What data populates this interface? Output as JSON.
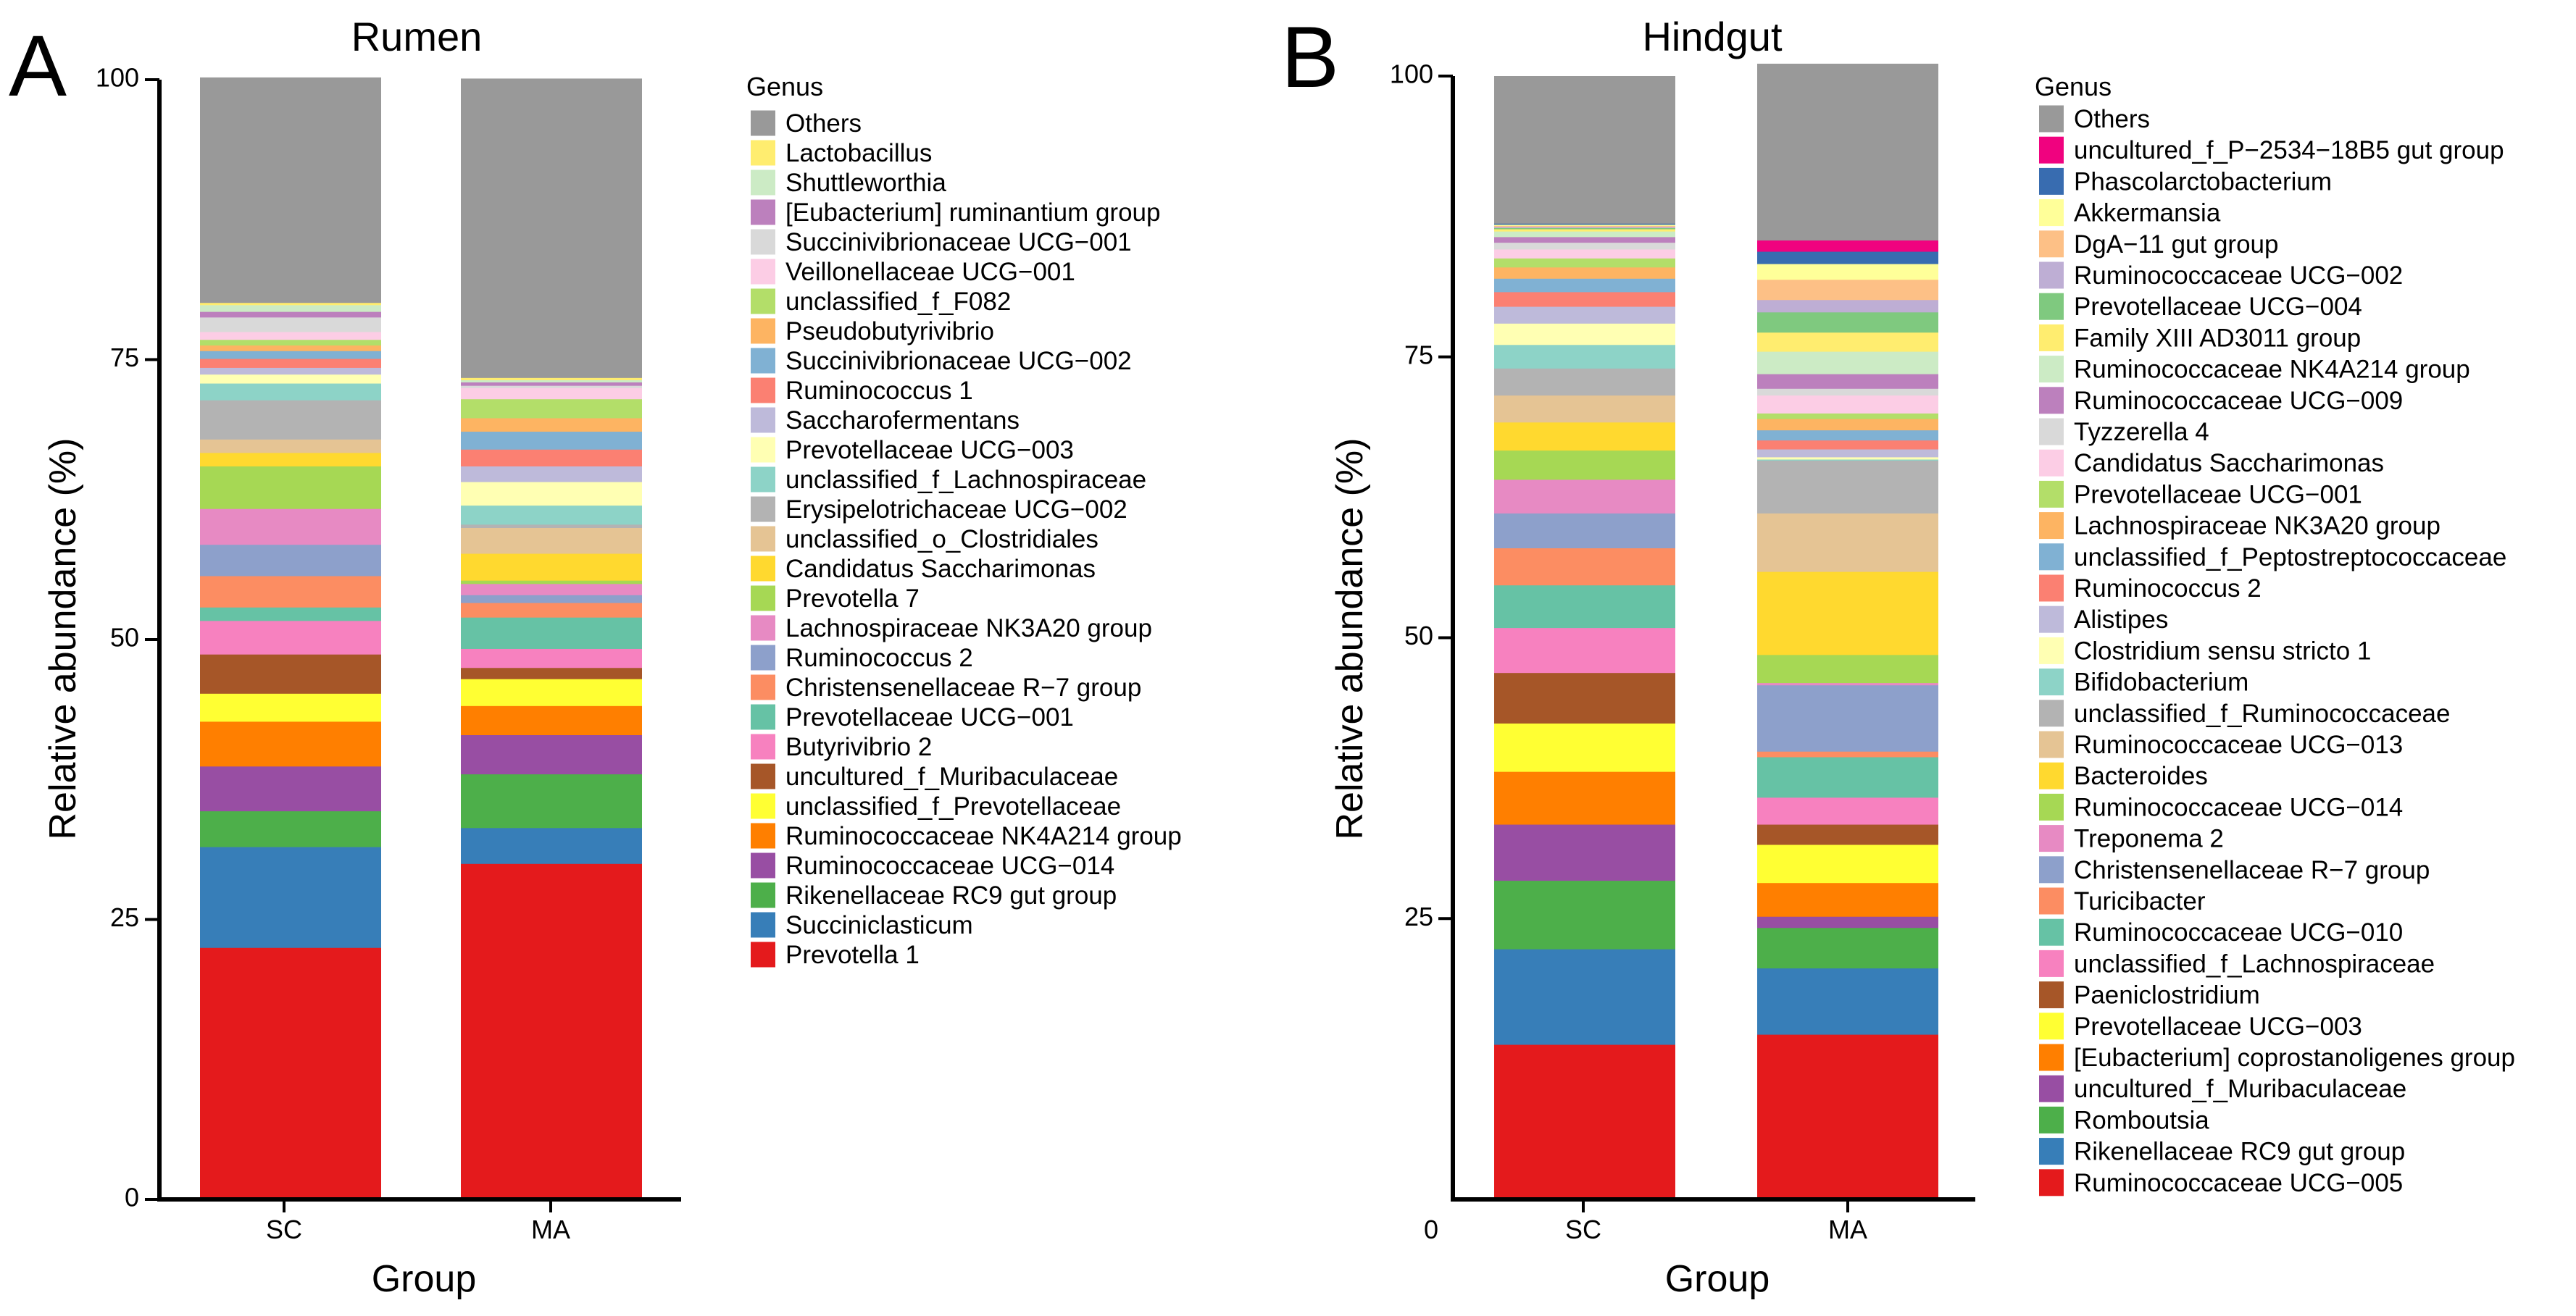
{
  "chart_data": [
    {
      "type": "bar",
      "stacked": true,
      "panel_letter": "A",
      "title": "Rumen",
      "xlabel": "Group",
      "ylabel": "Relative abundance (%)",
      "ylim": [
        0,
        100
      ],
      "yticks": [
        "0",
        "25",
        "50",
        "75",
        "100"
      ],
      "categories": [
        "SC",
        "MA"
      ],
      "legend_title": "Genus",
      "legend_position": "right",
      "series": [
        {
          "name": "Prevotella 1",
          "color": "#E41A1C",
          "values": [
            22.5,
            30.0
          ]
        },
        {
          "name": "Succiniclasticum",
          "color": "#377EB8",
          "values": [
            9.0,
            3.2
          ]
        },
        {
          "name": "Rikenellaceae RC9 gut group",
          "color": "#4DAF4A",
          "values": [
            3.2,
            4.8
          ]
        },
        {
          "name": "Ruminococcaceae UCG−014",
          "color": "#984EA3",
          "values": [
            4.0,
            3.5
          ]
        },
        {
          "name": "Ruminococcaceae NK4A214 group",
          "color": "#FF7F00",
          "values": [
            4.0,
            2.6
          ]
        },
        {
          "name": "unclassified_f_Prevotellaceae",
          "color": "#FFFF33",
          "values": [
            2.5,
            2.4
          ]
        },
        {
          "name": "uncultured_f_Muribaculaceae",
          "color": "#A65628",
          "values": [
            3.5,
            1.0
          ]
        },
        {
          "name": "Butyrivibrio 2",
          "color": "#F781BF",
          "values": [
            3.0,
            1.7
          ]
        },
        {
          "name": "Prevotellaceae UCG−001",
          "color": "#66C2A5",
          "values": [
            1.2,
            2.8
          ]
        },
        {
          "name": "Christensenellaceae R−7 group",
          "color": "#FC8D62",
          "values": [
            2.8,
            1.3
          ]
        },
        {
          "name": "Ruminococcus 2",
          "color": "#8DA0CB",
          "values": [
            2.8,
            0.7
          ]
        },
        {
          "name": "Lachnospiraceae NK3A20 group",
          "color": "#E78AC3",
          "values": [
            3.2,
            1.0
          ]
        },
        {
          "name": "Prevotella 7",
          "color": "#A6D854",
          "values": [
            3.8,
            0.3
          ]
        },
        {
          "name": "Candidatus Saccharimonas",
          "color": "#FFD92F",
          "values": [
            1.2,
            2.4
          ]
        },
        {
          "name": "unclassified_o_Clostridiales",
          "color": "#E5C494",
          "values": [
            1.2,
            2.3
          ]
        },
        {
          "name": "Erysipelotrichaceae UCG−002",
          "color": "#B3B3B3",
          "values": [
            3.5,
            0.3
          ]
        },
        {
          "name": "unclassified_f_Lachnospiraceae",
          "color": "#8DD3C7",
          "values": [
            1.5,
            1.7
          ]
        },
        {
          "name": "Prevotellaceae UCG−003",
          "color": "#FFFFB3",
          "values": [
            0.8,
            2.1
          ]
        },
        {
          "name": "Saccharofermentans",
          "color": "#BEBADA",
          "values": [
            0.6,
            1.4
          ]
        },
        {
          "name": "Ruminococcus 1",
          "color": "#FB8072",
          "values": [
            0.8,
            1.5
          ]
        },
        {
          "name": "Succinivibrionaceae UCG−002",
          "color": "#80B1D3",
          "values": [
            0.7,
            1.6
          ]
        },
        {
          "name": "Pseudobutyrivibrio",
          "color": "#FDB462",
          "values": [
            0.5,
            1.2
          ]
        },
        {
          "name": "unclassified_f_F082",
          "color": "#B3DE69",
          "values": [
            0.5,
            1.7
          ]
        },
        {
          "name": "Veillonellaceae UCG−001",
          "color": "#FCCDE5",
          "values": [
            0.7,
            1.0
          ]
        },
        {
          "name": "Succinivibrionaceae UCG−001",
          "color": "#D9D9D9",
          "values": [
            1.3,
            0.2
          ]
        },
        {
          "name": "[Eubacterium] ruminantium group",
          "color": "#BC80BD",
          "values": [
            0.5,
            0.3
          ]
        },
        {
          "name": "Shuttleworthia",
          "color": "#CCEBC5",
          "values": [
            0.6,
            0.2
          ]
        },
        {
          "name": "Lactobacillus",
          "color": "#FFED6F",
          "values": [
            0.2,
            0.2
          ]
        },
        {
          "name": "Others",
          "color": "#999999",
          "values": [
            20.1,
            26.7
          ]
        }
      ]
    },
    {
      "type": "bar",
      "stacked": true,
      "panel_letter": "B",
      "title": "Hindgut",
      "xlabel": "Group",
      "ylabel": "Relative abundance (%)",
      "ylim": [
        0,
        100
      ],
      "yticks": [
        "0",
        "25",
        "50",
        "75",
        "100"
      ],
      "categories": [
        "SC",
        "MA"
      ],
      "legend_title": "Genus",
      "legend_position": "right",
      "series": [
        {
          "name": "Ruminococcaceae UCG−005",
          "color": "#E41A1C",
          "values": [
            13.8,
            14.7
          ]
        },
        {
          "name": "Rikenellaceae RC9 gut group",
          "color": "#377EB8",
          "values": [
            8.5,
            5.9
          ]
        },
        {
          "name": "Romboutsia",
          "color": "#4DAF4A",
          "values": [
            6.1,
            3.6
          ]
        },
        {
          "name": "uncultured_f_Muribaculaceae",
          "color": "#984EA3",
          "values": [
            5.0,
            1.0
          ]
        },
        {
          "name": "[Eubacterium] coprostanoligenes group",
          "color": "#FF7F00",
          "values": [
            4.7,
            3.0
          ]
        },
        {
          "name": "Prevotellaceae UCG−003",
          "color": "#FFFF33",
          "values": [
            4.3,
            3.4
          ]
        },
        {
          "name": "Paeniclostridium",
          "color": "#A65628",
          "values": [
            4.5,
            1.8
          ]
        },
        {
          "name": "unclassified_f_Lachnospiraceae",
          "color": "#F781BF",
          "values": [
            4.0,
            2.4
          ]
        },
        {
          "name": "Ruminococcaceae UCG−010",
          "color": "#66C2A5",
          "values": [
            3.8,
            3.6
          ]
        },
        {
          "name": "Turicibacter",
          "color": "#FC8D62",
          "values": [
            3.3,
            0.5
          ]
        },
        {
          "name": "Christensenellaceae R−7 group",
          "color": "#8DA0CB",
          "values": [
            3.1,
            5.9
          ]
        },
        {
          "name": "Treponema 2",
          "color": "#E78AC3",
          "values": [
            3.0,
            0.2
          ]
        },
        {
          "name": "Ruminococcaceae UCG−014",
          "color": "#A6D854",
          "values": [
            2.6,
            2.5
          ]
        },
        {
          "name": "Bacteroides",
          "color": "#FFD92F",
          "values": [
            2.5,
            7.4
          ]
        },
        {
          "name": "Ruminococcaceae UCG−013",
          "color": "#E5C494",
          "values": [
            2.4,
            5.2
          ]
        },
        {
          "name": "unclassified_f_Ruminococcaceae",
          "color": "#B3B3B3",
          "values": [
            2.4,
            4.7
          ]
        },
        {
          "name": "Bifidobacterium",
          "color": "#8DD3C7",
          "values": [
            2.1,
            0.1
          ]
        },
        {
          "name": "Clostridium sensu stricto 1",
          "color": "#FFFFB3",
          "values": [
            1.9,
            0.2
          ]
        },
        {
          "name": "Alistipes",
          "color": "#BEBADA",
          "values": [
            1.5,
            0.7
          ]
        },
        {
          "name": "Ruminococcus 2",
          "color": "#FB8072",
          "values": [
            1.3,
            0.8
          ]
        },
        {
          "name": "unclassified_f_Peptostreptococcaceae",
          "color": "#80B1D3",
          "values": [
            1.2,
            0.9
          ]
        },
        {
          "name": "Lachnospiraceae NK3A20 group",
          "color": "#FDB462",
          "values": [
            1.0,
            1.0
          ]
        },
        {
          "name": "Prevotellaceae UCG−001",
          "color": "#B3DE69",
          "values": [
            0.8,
            0.5
          ]
        },
        {
          "name": "Candidatus Saccharimonas",
          "color": "#FCCDE5",
          "values": [
            0.8,
            1.6
          ]
        },
        {
          "name": "Tyzzerella 4",
          "color": "#D9D9D9",
          "values": [
            0.6,
            0.6
          ]
        },
        {
          "name": "Ruminococcaceae UCG−009",
          "color": "#BC80BD",
          "values": [
            0.5,
            1.3
          ]
        },
        {
          "name": "Ruminococcaceae NK4A214 group",
          "color": "#CCEBC5",
          "values": [
            0.5,
            2.0
          ]
        },
        {
          "name": "Family XIII AD3011 group",
          "color": "#FFED6F",
          "values": [
            0.2,
            1.7
          ]
        },
        {
          "name": "Prevotellaceae UCG−004",
          "color": "#7FC97F",
          "values": [
            0.1,
            1.8
          ]
        },
        {
          "name": "Ruminococcaceae UCG−002",
          "color": "#BEAED4",
          "values": [
            0.1,
            1.1
          ]
        },
        {
          "name": "DgA−11 gut group",
          "color": "#FDC086",
          "values": [
            0.1,
            1.8
          ]
        },
        {
          "name": "Akkermansia",
          "color": "#FFFF99",
          "values": [
            0.1,
            1.4
          ]
        },
        {
          "name": "Phascolarctobacterium",
          "color": "#386CB0",
          "values": [
            0.1,
            1.1
          ]
        },
        {
          "name": "uncultured_f_P−2534−18B5 gut group",
          "color": "#F0027F",
          "values": [
            0.0,
            1.0
          ]
        },
        {
          "name": "Others",
          "color": "#999999",
          "values": [
            13.1,
            15.7
          ]
        }
      ]
    }
  ]
}
